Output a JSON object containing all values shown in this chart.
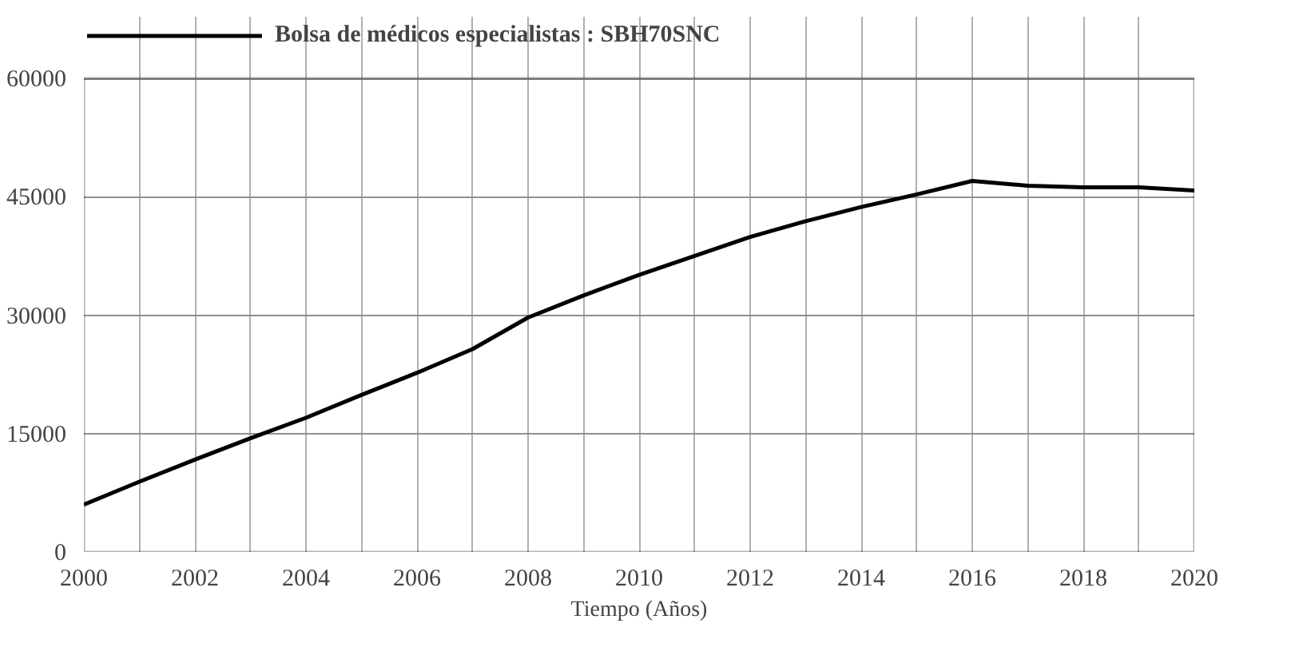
{
  "chart_data": {
    "type": "line",
    "xlabel": "Tiempo (Años)",
    "x": [
      2000,
      2001,
      2002,
      2003,
      2004,
      2005,
      2006,
      2007,
      2008,
      2009,
      2010,
      2011,
      2012,
      2013,
      2014,
      2015,
      2016,
      2017,
      2018,
      2019,
      2020
    ],
    "series": [
      {
        "name": "Bolsa de médicos especialistas : SBH70SNC",
        "color": "#000000",
        "values": [
          6000,
          8900,
          11700,
          14400,
          17000,
          19900,
          22700,
          25700,
          29700,
          32500,
          35100,
          37500,
          39900,
          41900,
          43700,
          45300,
          47000,
          46400,
          46200,
          46200,
          45800
        ]
      }
    ],
    "xlim": [
      2000,
      2020
    ],
    "xticks": [
      2000,
      {
        "value": 2001,
        "label": null
      },
      2002,
      {
        "value": 2003,
        "label": null
      },
      2004,
      {
        "value": 2005,
        "label": null
      },
      2006,
      {
        "value": 2007,
        "label": null
      },
      2008,
      {
        "value": 2009,
        "label": null
      },
      2010,
      {
        "value": 2011,
        "label": null
      },
      2012,
      {
        "value": 2013,
        "label": null
      },
      2014,
      {
        "value": 2015,
        "label": null
      },
      2016,
      {
        "value": 2017,
        "label": null
      },
      2018,
      {
        "value": 2019,
        "label": null
      },
      2020
    ],
    "ylim": [
      0,
      60000
    ],
    "yticks": [
      0,
      15000,
      30000,
      45000,
      60000
    ],
    "grid": true,
    "legend": "top left",
    "line_style": "solid",
    "marker": "none"
  }
}
